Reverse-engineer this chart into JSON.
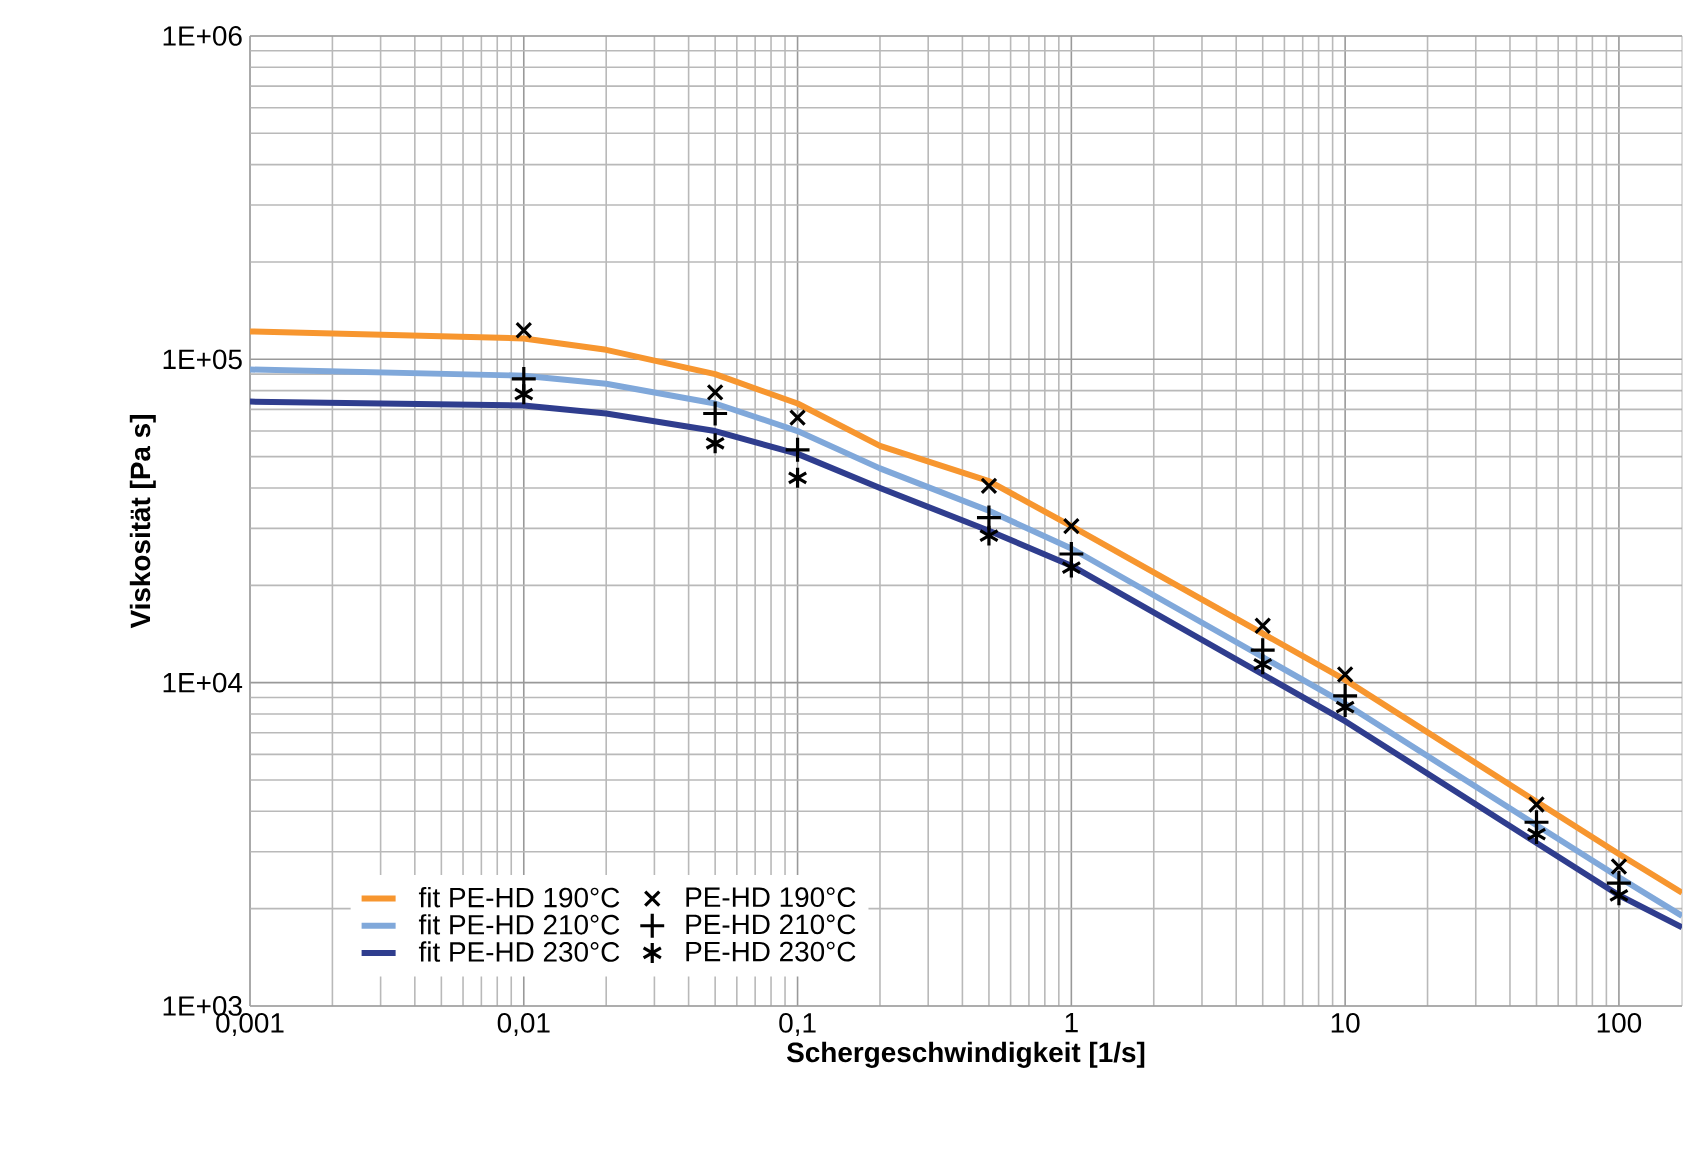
{
  "chart_data": {
    "type": "line",
    "xlabel": "Schergeschwindigkeit [1/s]",
    "ylabel": "Viskosität [Pa s]",
    "log": "xy",
    "grid": true,
    "legend": "bottom left",
    "xlim": [
      0.001,
      170
    ],
    "ylim": [
      1000,
      1000000
    ],
    "xticks": [
      {
        "value": 0.001,
        "label": "0,001"
      },
      {
        "value": 0.01,
        "label": "0,01"
      },
      {
        "value": 0.1,
        "label": "0,1"
      },
      1,
      10,
      100
    ],
    "yticks": [
      {
        "value": 1000,
        "label": "1E+03"
      },
      {
        "value": 10000,
        "label": "1E+04"
      },
      {
        "value": 100000,
        "label": "1E+05"
      },
      {
        "value": 1000000,
        "label": "1E+06"
      }
    ],
    "series": [
      {
        "name": "fit PE-HD 190°C",
        "marker": "none",
        "color": "#f7962f",
        "x": [
          0.001,
          0.01,
          0.02,
          0.05,
          0.1,
          0.2,
          0.5,
          1,
          10,
          100,
          170
        ],
        "values": [
          122000,
          116000,
          107000,
          90000,
          73000,
          54000,
          42000,
          30500,
          10200,
          2950,
          2240
        ]
      },
      {
        "name": "fit PE-HD 210°C",
        "marker": "none",
        "color": "#80a8da",
        "x": [
          0.001,
          0.01,
          0.02,
          0.05,
          0.1,
          0.2,
          0.5,
          1,
          10,
          100,
          170
        ],
        "values": [
          93000,
          89000,
          84000,
          73000,
          60000,
          46000,
          34000,
          26000,
          8600,
          2500,
          1900
        ]
      },
      {
        "name": "fit PE-HD 230°C",
        "marker": "none",
        "color": "#2f3d8e",
        "x": [
          0.001,
          0.01,
          0.02,
          0.05,
          0.1,
          0.2,
          0.5,
          1,
          10,
          100,
          170
        ],
        "values": [
          74000,
          72000,
          68000,
          60000,
          51000,
          40000,
          29500,
          23000,
          7600,
          2200,
          1750
        ]
      },
      {
        "name": "PE-HD 190°C",
        "type": "scatter",
        "marker": "cross",
        "color": "#000000",
        "x": [
          0.01,
          0.05,
          0.1,
          0.5,
          1,
          5,
          10,
          50,
          100
        ],
        "values": [
          123000,
          79000,
          66000,
          40600,
          30500,
          15000,
          10600,
          4200,
          2700
        ]
      },
      {
        "name": "PE-HD 210°C",
        "type": "scatter",
        "marker": "plus",
        "color": "#000000",
        "x": [
          0.01,
          0.05,
          0.1,
          0.5,
          1,
          5,
          10,
          50,
          100
        ],
        "values": [
          87000,
          68000,
          52500,
          32400,
          25000,
          12600,
          9100,
          3700,
          2400
        ]
      },
      {
        "name": "PE-HD 230°C",
        "type": "scatter",
        "color": "#000000",
        "x": [
          0.01,
          0.05,
          0.1,
          0.5,
          1,
          5,
          10,
          50,
          100
        ],
        "values": [
          78000,
          55000,
          43000,
          28500,
          22700,
          11400,
          8400,
          3400,
          2200
        ]
      }
    ]
  }
}
